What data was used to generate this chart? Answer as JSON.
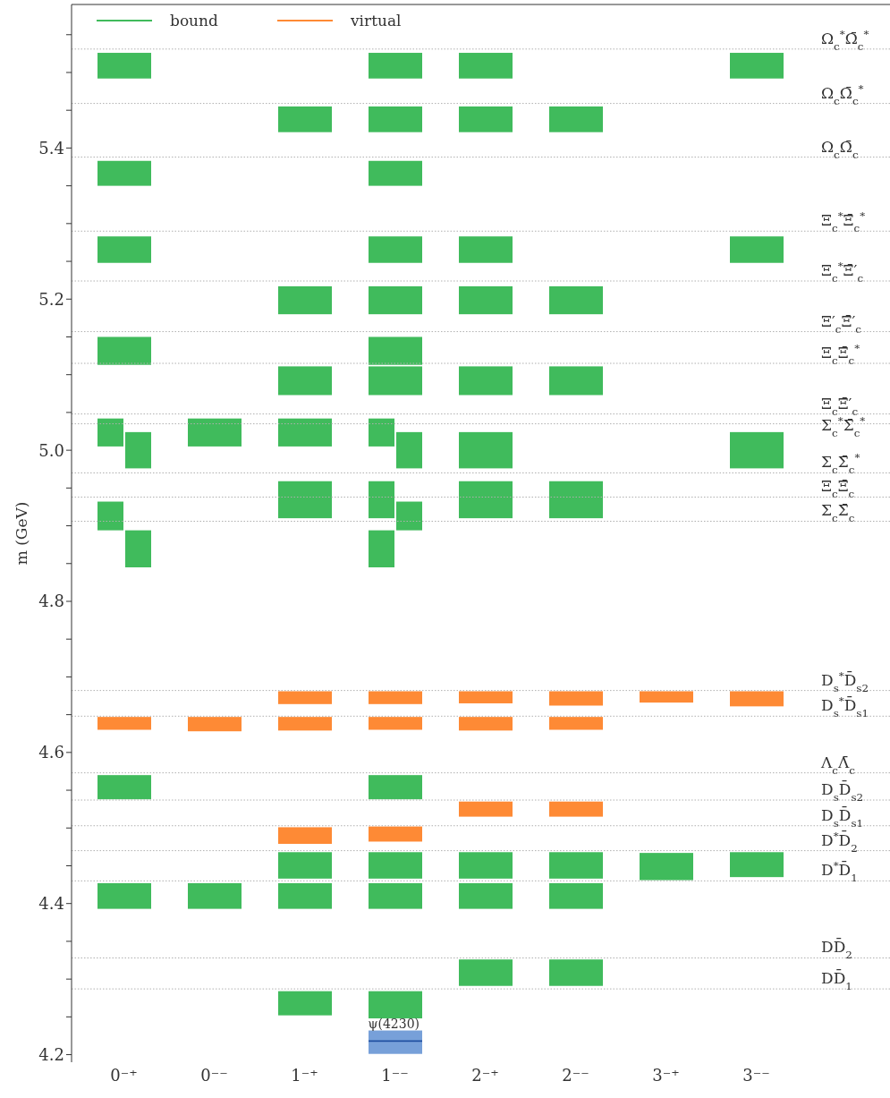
{
  "chart_data": {
    "type": "bar",
    "ylabel": "m (GeV)",
    "categories": [
      "0⁻⁺",
      "0⁻⁻",
      "1⁻⁺",
      "1⁻⁻",
      "2⁻⁺",
      "2⁻⁻",
      "3⁻⁺",
      "3⁻⁻"
    ],
    "ylim": [
      4.19,
      5.59
    ],
    "yticks": [
      {
        "value": 4.2,
        "label": "4.2"
      },
      {
        "value": 4.25,
        "label": null
      },
      {
        "value": 4.3,
        "label": null
      },
      {
        "value": 4.35,
        "label": null
      },
      {
        "value": 4.4,
        "label": "4.4"
      },
      {
        "value": 4.45,
        "label": null
      },
      {
        "value": 4.5,
        "label": null
      },
      {
        "value": 4.55,
        "label": null
      },
      {
        "value": 4.6,
        "label": "4.6"
      },
      {
        "value": 4.65,
        "label": null
      },
      {
        "value": 4.7,
        "label": null
      },
      {
        "value": 4.75,
        "label": null
      },
      {
        "value": 4.8,
        "label": "4.8"
      },
      {
        "value": 4.85,
        "label": null
      },
      {
        "value": 4.9,
        "label": null
      },
      {
        "value": 4.95,
        "label": null
      },
      {
        "value": 5,
        "label": "5.0"
      },
      {
        "value": 5.05,
        "label": null
      },
      {
        "value": 5.1,
        "label": null
      },
      {
        "value": 5.15,
        "label": null
      },
      {
        "value": 5.2,
        "label": "5.2"
      },
      {
        "value": 5.25,
        "label": null
      },
      {
        "value": 5.3,
        "label": null
      },
      {
        "value": 5.35,
        "label": null
      },
      {
        "value": 5.4,
        "label": "5.4"
      },
      {
        "value": 5.45,
        "label": null
      },
      {
        "value": 5.5,
        "label": null
      },
      {
        "value": 5.55,
        "label": null
      }
    ],
    "legend": "top left",
    "series": [
      {
        "name": "bound",
        "color": "#40bb5c",
        "base": [
          5.005,
          5.005,
          5.005,
          5.005,
          null,
          null,
          null,
          null
        ],
        "values": [
          0.037,
          0.037,
          0.037,
          0.037,
          null,
          null,
          null,
          null
        ]
      },
      {
        "color": "#40bb5c",
        "base": [
          null,
          null,
          4.91,
          4.91,
          4.91,
          4.91,
          null,
          null
        ],
        "values": [
          null,
          null,
          0.049,
          0.049,
          0.049,
          0.049,
          null,
          null
        ]
      },
      {
        "color": "#40bb5c",
        "base": [
          4.894,
          null,
          null,
          null,
          null,
          null,
          null,
          null
        ],
        "values": [
          0.038,
          null,
          null,
          null,
          null,
          null,
          null,
          null
        ]
      },
      {
        "color": "#40bb5c",
        "base": [
          null,
          null,
          null,
          4.845,
          null,
          null,
          null,
          null
        ],
        "values": [
          null,
          null,
          null,
          0.049,
          null,
          null,
          null,
          null
        ]
      },
      {
        "color": "#40bb5c",
        "base": [
          5.492,
          null,
          null,
          5.492,
          5.492,
          null,
          null,
          5.492
        ],
        "values": [
          0.034,
          null,
          null,
          0.034,
          0.034,
          null,
          null,
          0.034
        ]
      },
      {
        "color": "#40bb5c",
        "base": [
          null,
          null,
          5.421,
          5.421,
          5.421,
          5.421,
          null,
          null
        ],
        "values": [
          null,
          null,
          0.034,
          0.034,
          0.034,
          0.034,
          null,
          null
        ]
      },
      {
        "color": "#40bb5c",
        "base": [
          5.35,
          null,
          null,
          5.35,
          null,
          null,
          null,
          null
        ],
        "values": [
          0.033,
          null,
          null,
          0.033,
          null,
          null,
          null,
          null
        ]
      },
      {
        "color": "#40bb5c",
        "base": [
          5.248,
          null,
          null,
          5.248,
          5.248,
          null,
          null,
          5.248
        ],
        "values": [
          0.035,
          null,
          null,
          0.035,
          0.035,
          null,
          null,
          0.035
        ]
      },
      {
        "color": "#40bb5c",
        "base": [
          null,
          null,
          5.18,
          5.18,
          5.18,
          5.18,
          null,
          null
        ],
        "values": [
          null,
          null,
          0.037,
          0.037,
          0.037,
          0.037,
          null,
          null
        ]
      },
      {
        "color": "#40bb5c",
        "base": [
          5.113,
          null,
          null,
          5.113,
          null,
          null,
          null,
          null
        ],
        "values": [
          0.037,
          null,
          null,
          0.037,
          null,
          null,
          null,
          null
        ]
      },
      {
        "color": "#40bb5c",
        "base": [
          null,
          null,
          5.073,
          5.073,
          5.073,
          5.073,
          null,
          null
        ],
        "values": [
          null,
          null,
          0.038,
          0.038,
          0.038,
          0.038,
          null,
          null
        ]
      },
      {
        "name": "virtual",
        "color": "#fe8a35",
        "base": [
          null,
          null,
          4.664,
          4.664,
          4.665,
          4.662,
          4.666,
          4.661
        ],
        "values": [
          null,
          null,
          0.017,
          0.017,
          0.016,
          0.019,
          0.015,
          0.02
        ]
      },
      {
        "color": "#fe8a35",
        "base": [
          4.63,
          4.628,
          4.629,
          4.63,
          4.629,
          4.63,
          null,
          null
        ],
        "values": [
          0.017,
          0.019,
          0.018,
          0.017,
          0.018,
          0.017,
          null,
          null
        ]
      },
      {
        "color": "#40bb5c",
        "base": [
          4.538,
          null,
          null,
          4.538,
          null,
          null,
          null,
          null
        ],
        "values": [
          0.032,
          null,
          null,
          0.032,
          null,
          null,
          null,
          null
        ]
      },
      {
        "color": "#fe8a35",
        "base": [
          null,
          null,
          null,
          null,
          4.515,
          4.515,
          null,
          null
        ],
        "values": [
          null,
          null,
          null,
          null,
          0.02,
          0.02,
          null,
          null
        ]
      },
      {
        "color": "#fe8a35",
        "base": [
          null,
          null,
          4.479,
          4.482,
          null,
          null,
          null,
          null
        ],
        "values": [
          null,
          null,
          0.022,
          0.02,
          null,
          null,
          null,
          null
        ]
      },
      {
        "color": "#40bb5c",
        "base": [
          null,
          null,
          4.433,
          4.433,
          4.433,
          4.433,
          4.431,
          4.435
        ],
        "values": [
          null,
          null,
          0.035,
          0.035,
          0.035,
          0.035,
          0.036,
          0.033
        ]
      },
      {
        "color": "#40bb5c",
        "base": [
          4.393,
          4.393,
          4.393,
          4.393,
          4.393,
          4.393,
          null,
          null
        ],
        "values": [
          0.034,
          0.034,
          0.034,
          0.034,
          0.034,
          0.034,
          null,
          null
        ]
      },
      {
        "color": "#40bb5c",
        "base": [
          null,
          null,
          null,
          null,
          4.291,
          4.291,
          null,
          null
        ],
        "values": [
          null,
          null,
          null,
          null,
          0.035,
          0.035,
          null,
          null
        ]
      },
      {
        "color": "#40bb5c",
        "base": [
          null,
          null,
          4.252,
          4.248,
          null,
          null,
          null,
          null
        ],
        "values": [
          null,
          null,
          0.032,
          0.036,
          null,
          null,
          null,
          null
        ]
      },
      {
        "color": "#77a0d9",
        "base": [
          null,
          null,
          null,
          4.201,
          null,
          null,
          null,
          null
        ],
        "values": [
          null,
          null,
          null,
          0.031,
          null,
          null,
          null,
          null
        ]
      },
      {
        "color": "#1f4fa0",
        "base": [
          null,
          null,
          null,
          4.217,
          null,
          null,
          null,
          null
        ],
        "values": [
          null,
          null,
          null,
          0.002,
          null,
          null,
          null,
          null
        ]
      },
      {
        "color": "#40bb5c",
        "base": [
          4.976,
          null,
          null,
          4.976,
          4.976,
          null,
          null,
          4.976
        ],
        "values": [
          0.048,
          null,
          null,
          0.048,
          0.048,
          null,
          null,
          0.048
        ]
      },
      {
        "color": "#40bb5c",
        "base": [
          null,
          null,
          null,
          4.894,
          null,
          null,
          null,
          null
        ],
        "values": [
          null,
          null,
          null,
          0.038,
          null,
          null,
          null,
          null
        ]
      },
      {
        "color": "#40bb5c",
        "base": [
          4.845,
          null,
          null,
          null,
          null,
          null,
          null,
          null
        ],
        "values": [
          0.049,
          null,
          null,
          null,
          null,
          null,
          null,
          null
        ]
      }
    ],
    "annotations": [
      {
        "text": "ψ(4230)",
        "x": "1⁻⁻",
        "y": 4.232
      }
    ],
    "ref_lines": [
      {
        "axis": "y",
        "value": 5.531,
        "label": "Ω$_{c}$$^{*}$Ω̄$_{c}$$^{*}$",
        "color": "#b0b0b0",
        "line_style": "dotted"
      },
      {
        "axis": "y",
        "value": 5.459,
        "label": "Ω$_{c}$Ω̄$_{c}$$^{*}$",
        "color": "#b0b0b0",
        "line_style": "dotted"
      },
      {
        "axis": "y",
        "value": 5.388,
        "label": "Ω$_{c}$Ω̄$_{c}$",
        "color": "#b0b0b0",
        "line_style": "dotted"
      },
      {
        "axis": "y",
        "value": 5.29,
        "label": "Ξ$_{c}$$^{*}$Ξ̄$_{c}$$^{*}$",
        "color": "#b0b0b0",
        "line_style": "dotted"
      },
      {
        "axis": "y",
        "value": 5.224,
        "label": "Ξ$_{c}$$^{*}$Ξ̄′$_{c}$",
        "color": "#b0b0b0",
        "line_style": "dotted"
      },
      {
        "axis": "y",
        "value": 5.157,
        "label": "Ξ′$_{c}$Ξ̄′$_{c}$",
        "color": "#b0b0b0",
        "line_style": "dotted"
      },
      {
        "axis": "y",
        "value": 5.115,
        "label": "Ξ$_{c}$Ξ̄$_{c}$$^{*}$",
        "color": "#b0b0b0",
        "line_style": "dotted"
      },
      {
        "axis": "y",
        "value": 5.048,
        "label": "Ξ$_{c}$Ξ̄′$_{c}$",
        "color": "#b0b0b0",
        "line_style": "dotted"
      },
      {
        "axis": "y",
        "value": 5.035,
        "label": "Σ$_{c}$$^{*}$Σ̄$_{c}$$^{*}$",
        "color": "#b0b0b0",
        "line_style": "dotted"
      },
      {
        "axis": "y",
        "value": 4.97,
        "label": "Σ$_{c}$Σ̄$_{c}$$^{*}$",
        "color": "#b0b0b0",
        "line_style": "dotted"
      },
      {
        "axis": "y",
        "value": 4.938,
        "label": "Ξ$_{c}$Ξ̄$_{c}$",
        "color": "#b0b0b0",
        "line_style": "dotted"
      },
      {
        "axis": "y",
        "value": 4.906,
        "label": "Σ$_{c}$Σ̄$_{c}$",
        "color": "#b0b0b0",
        "line_style": "dotted"
      },
      {
        "axis": "y",
        "value": 4.682,
        "label": "D$_{s}$$^{*}$D̄$_{s2}$",
        "color": "#b0b0b0",
        "line_style": "dotted"
      },
      {
        "axis": "y",
        "value": 4.648,
        "label": "D$_{s}$$^{*}$D̄$_{s1}$",
        "color": "#b0b0b0",
        "line_style": "dotted"
      },
      {
        "axis": "y",
        "value": 4.573,
        "label": "Λ$_{c}$Λ̄$_{c}$",
        "color": "#b0b0b0",
        "line_style": "dotted"
      },
      {
        "axis": "y",
        "value": 4.537,
        "label": "D$_{s}$D̄$_{s2}$",
        "color": "#b0b0b0",
        "line_style": "dotted"
      },
      {
        "axis": "y",
        "value": 4.503,
        "label": "D$_{s}$D̄$_{s1}$",
        "color": "#b0b0b0",
        "line_style": "dotted"
      },
      {
        "axis": "y",
        "value": 4.47,
        "label": "D$^{*}$D̄$_{2}$",
        "color": "#b0b0b0",
        "line_style": "dotted"
      },
      {
        "axis": "y",
        "value": 4.43,
        "label": "D$^{*}$D̄$_{1}$",
        "color": "#b0b0b0",
        "line_style": "dotted"
      },
      {
        "axis": "y",
        "value": 4.328,
        "label": "DD̄$_{2}$",
        "color": "#b0b0b0",
        "line_style": "dotted"
      },
      {
        "axis": "y",
        "value": 4.287,
        "label": "DD̄$_{1}$",
        "color": "#b0b0b0",
        "line_style": "dotted"
      }
    ]
  }
}
